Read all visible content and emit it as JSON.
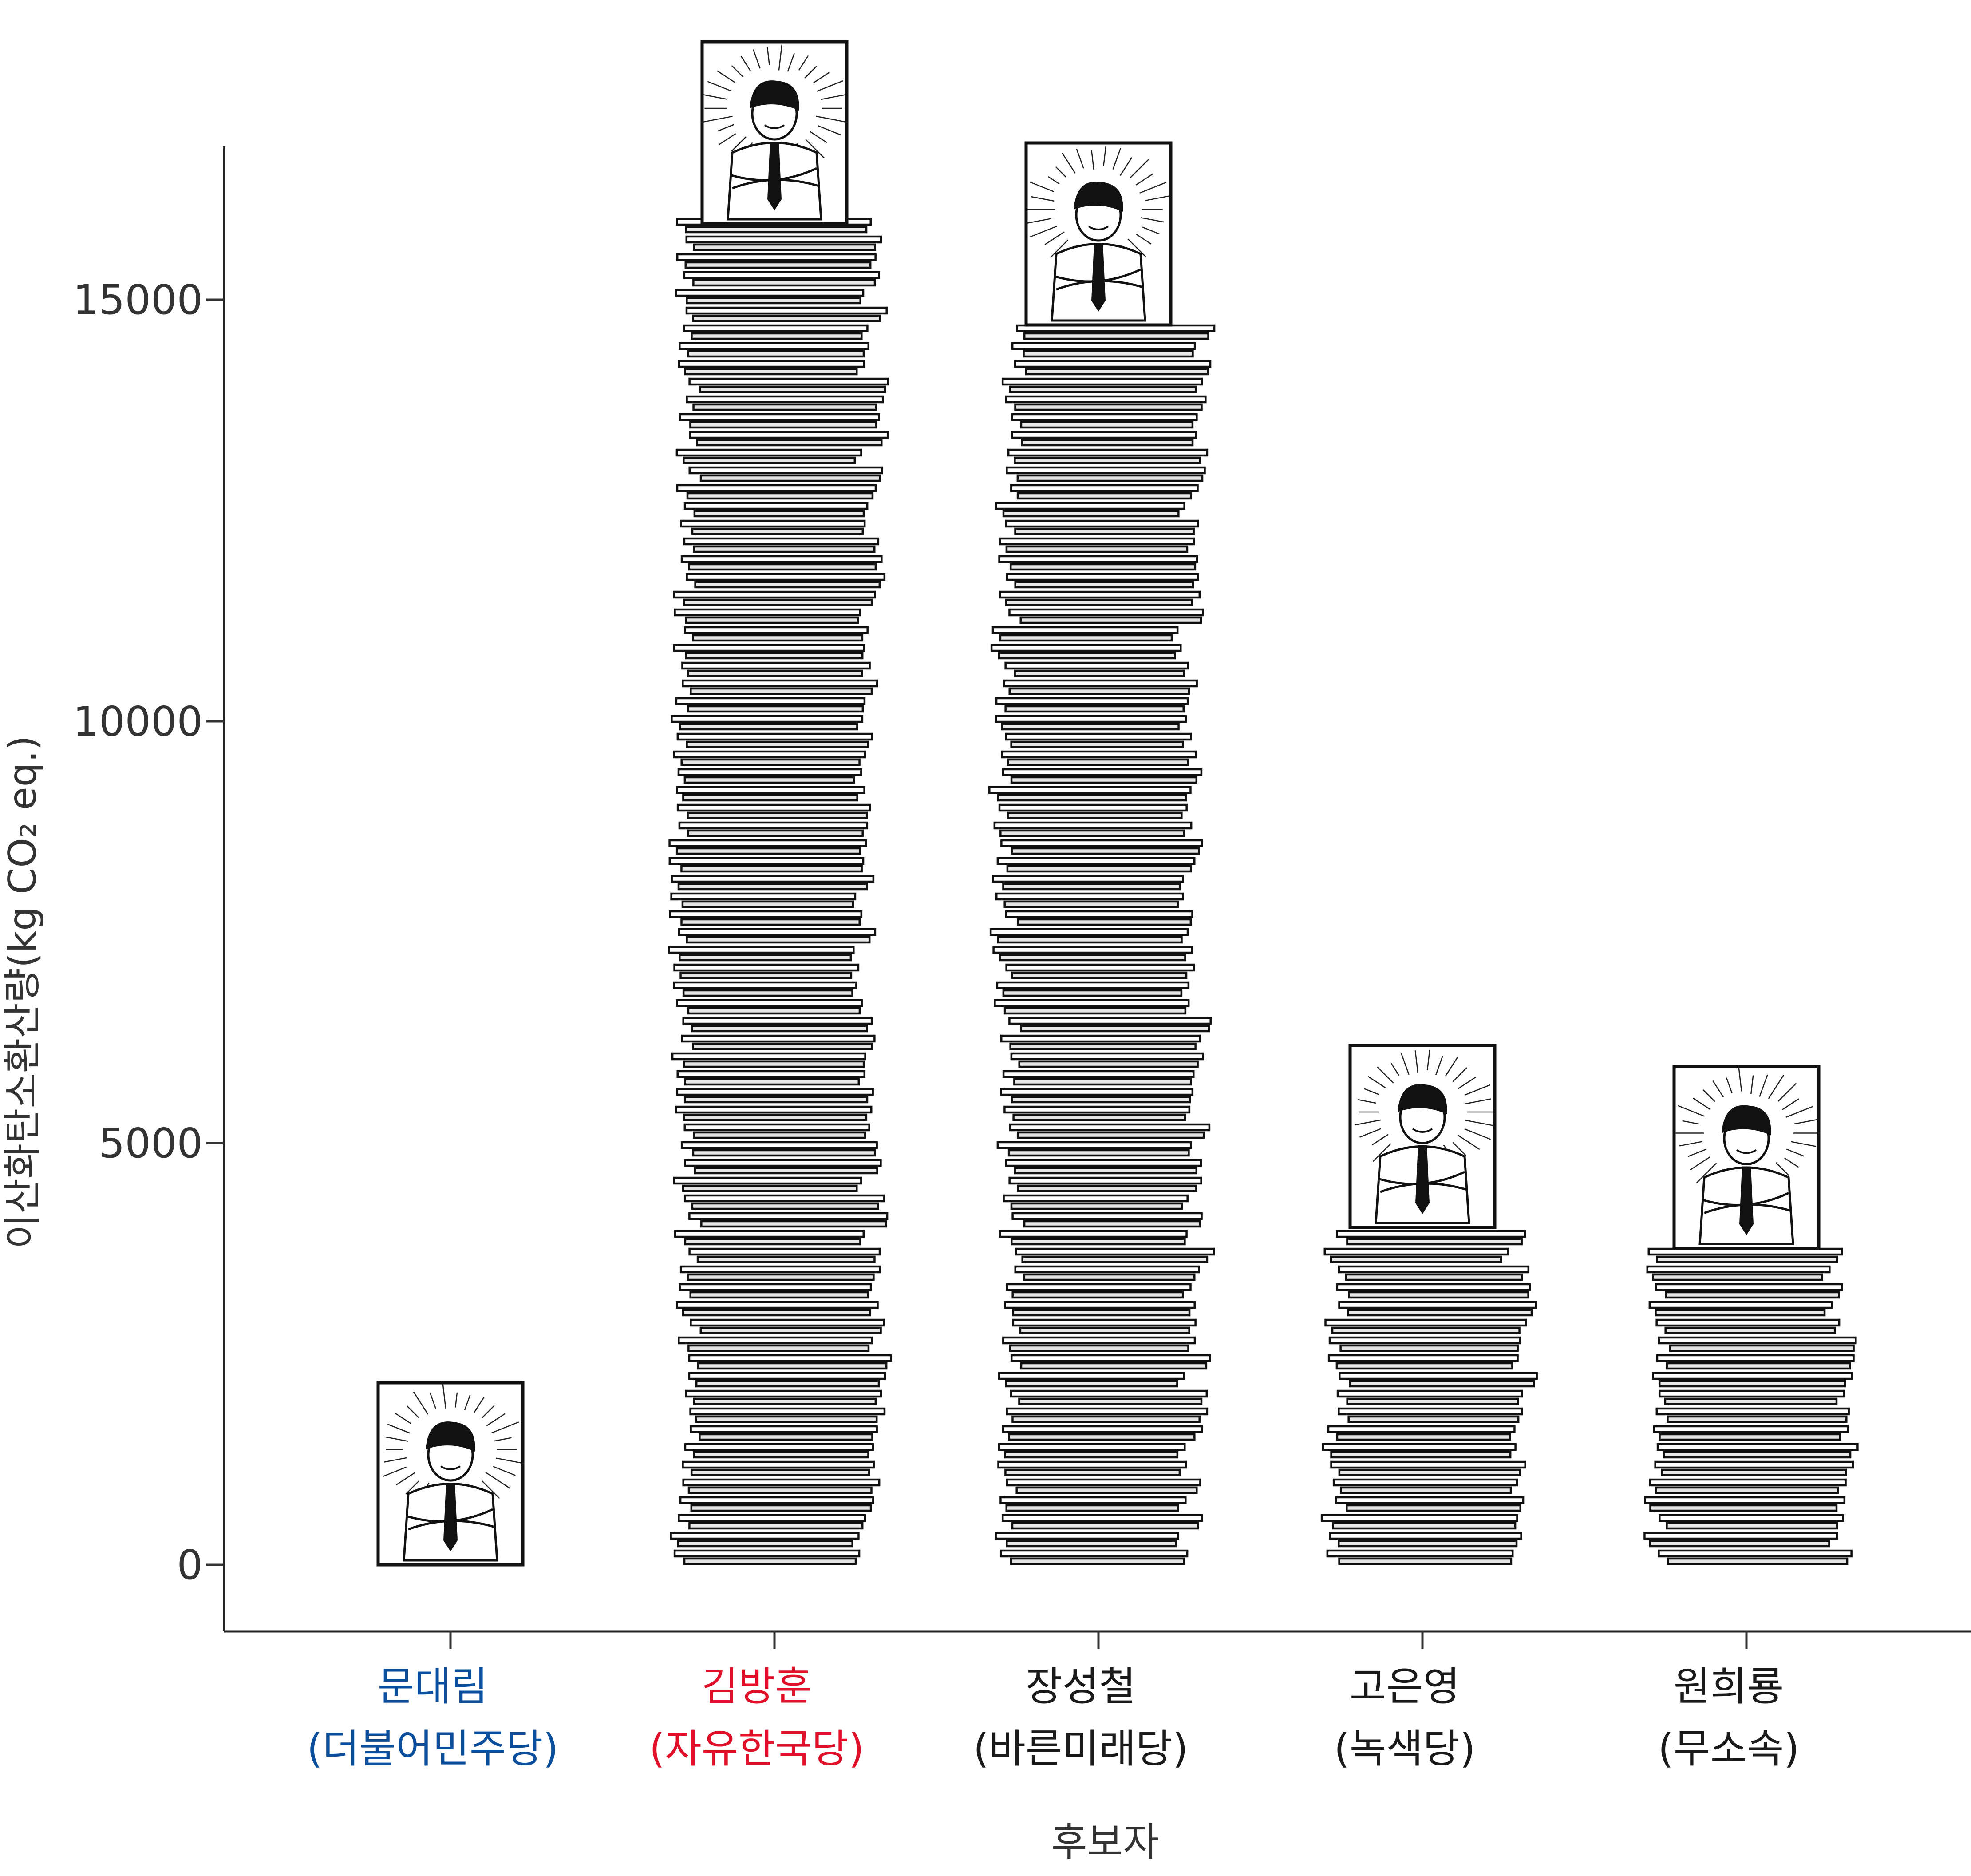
{
  "chart_data": {
    "type": "bar",
    "title": "",
    "xlabel": "후보자",
    "ylabel": "이산화탄소환산량(kg CO₂ eq.)",
    "ylim": [
      -1500,
      16700
    ],
    "yticks": [
      0,
      5000,
      10000,
      15000
    ],
    "ytick_labels": [
      "0",
      "5000",
      "10000",
      "15000"
    ],
    "categories": [
      {
        "name": "문대림",
        "party": "(더불어민주당)",
        "color": "#0b4f9c",
        "value": 0
      },
      {
        "name": "김방훈",
        "party": "(자유한국당)",
        "color": "#e0102a",
        "value": 15900
      },
      {
        "name": "장성철",
        "party": "(바른미래당)",
        "color": "#1a1a1a",
        "value": 14700
      },
      {
        "name": "고은영",
        "party": "(녹색당)",
        "color": "#1a1a1a",
        "value": 4000
      },
      {
        "name": "원희룡",
        "party": "(무소속)",
        "color": "#1a1a1a",
        "value": 3750
      }
    ],
    "values": [
      0,
      15900,
      14700,
      4000,
      3750
    ],
    "grid": false,
    "legend": "none",
    "mark_style": "stacked-paper-with-portrait"
  }
}
